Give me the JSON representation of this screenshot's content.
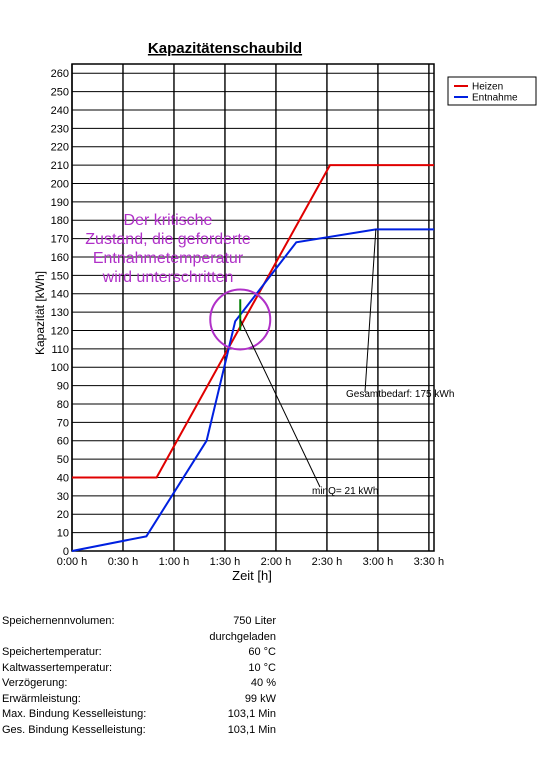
{
  "chart_data": {
    "type": "line",
    "title": "Kapazitätenschaubild",
    "xlabel": "Zeit [h]",
    "ylabel": "Kapazität [kWh]",
    "xlim": [
      0,
      3.55
    ],
    "ylim": [
      0,
      265
    ],
    "xticks": [
      0,
      0.5,
      1.0,
      1.5,
      2.0,
      2.5,
      3.0,
      3.5
    ],
    "xtick_labels": [
      "0:00 h",
      "0:30 h",
      "1:00 h",
      "1:30 h",
      "2:00 h",
      "2:30 h",
      "3:00 h",
      "3:30 h"
    ],
    "yticks": [
      0,
      10,
      20,
      30,
      40,
      50,
      60,
      70,
      80,
      90,
      100,
      110,
      120,
      130,
      140,
      150,
      160,
      170,
      180,
      190,
      200,
      210,
      220,
      230,
      240,
      250,
      260
    ],
    "grid": true,
    "legend_position": "top-right",
    "series": [
      {
        "name": "Heizen",
        "color": "#e00000",
        "x": [
          0,
          0.83,
          2.53,
          3.55
        ],
        "y": [
          40,
          40,
          210,
          210
        ]
      },
      {
        "name": "Entnahme",
        "color": "#0020e0",
        "x": [
          0,
          0.73,
          1.32,
          1.6,
          2.2,
          2.98,
          3.55
        ],
        "y": [
          0,
          8,
          60,
          125,
          168,
          175,
          175
        ]
      }
    ],
    "annotations": {
      "critical_lines": [
        "Der kritische",
        "Zustand, die geforderte",
        "Entnahmetemperatur",
        "wird unterschritten"
      ],
      "critical_color": "#b030c8",
      "circle_center": [
        1.65,
        126
      ],
      "marker_color": "#008000",
      "marker_x": 1.65,
      "marker_y": [
        120,
        137
      ],
      "gesamtbedarf": {
        "text": "Gesamtbedarf: 175 kWh",
        "point": [
          2.98,
          175
        ]
      },
      "minq": {
        "text": "minQ= 21 kWh",
        "point": [
          1.65,
          126
        ]
      }
    }
  },
  "info": [
    {
      "label": "Speichernennvolumen:",
      "value": "750 Liter"
    },
    {
      "label": "",
      "value": "durchgeladen"
    },
    {
      "label": "Speichertemperatur:",
      "value": "60 °C"
    },
    {
      "label": "Kaltwassertemperatur:",
      "value": "10 °C"
    },
    {
      "label": "Verzögerung:",
      "value": "40 %"
    },
    {
      "label": "Erwärmleistung:",
      "value": "99 kW"
    },
    {
      "label": "Max. Bindung Kesselleistung:",
      "value": "103,1 Min"
    },
    {
      "label": "Ges. Bindung Kesselleistung:",
      "value": "103,1 Min"
    }
  ]
}
